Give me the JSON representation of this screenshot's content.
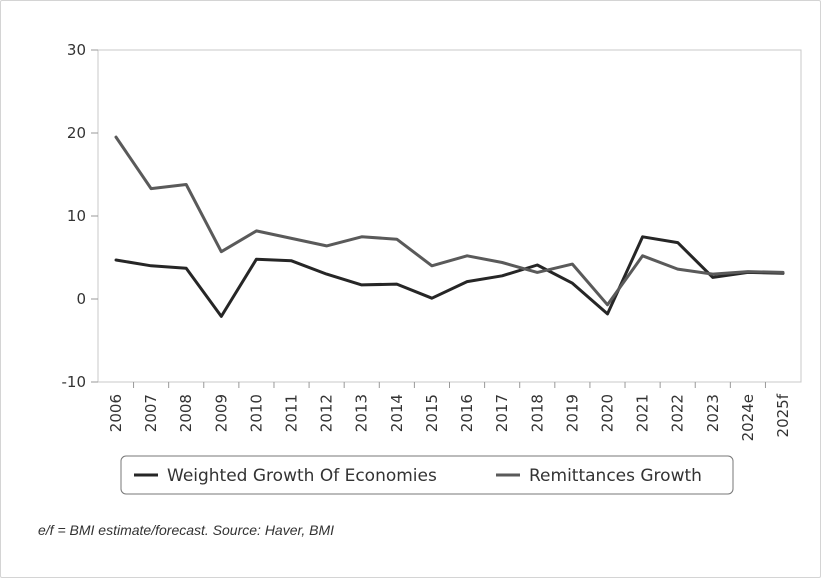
{
  "chart_data": {
    "type": "line",
    "categories": [
      "2006",
      "2007",
      "2008",
      "2009",
      "2010",
      "2011",
      "2012",
      "2013",
      "2014",
      "2015",
      "2016",
      "2017",
      "2018",
      "2019",
      "2020",
      "2021",
      "2022",
      "2023",
      "2024e",
      "2025f"
    ],
    "series": [
      {
        "name": "Weighted Growth Of Economies",
        "color": "#262626",
        "values": [
          4.7,
          4.0,
          3.7,
          -2.1,
          4.8,
          4.6,
          3.0,
          1.7,
          1.8,
          0.1,
          2.1,
          2.8,
          4.1,
          1.9,
          -1.8,
          7.5,
          6.8,
          2.6,
          3.2,
          3.1
        ]
      },
      {
        "name": "Remittances Growth",
        "color": "#5a5a5a",
        "values": [
          19.5,
          13.3,
          13.8,
          5.7,
          8.2,
          7.3,
          6.4,
          7.5,
          7.2,
          4.0,
          5.2,
          4.4,
          3.2,
          4.2,
          -0.7,
          5.2,
          3.6,
          3.0,
          3.3,
          3.2
        ]
      }
    ],
    "ylim": [
      -10,
      30
    ],
    "yticks": [
      30,
      20,
      10,
      0,
      -10
    ],
    "xlabel": "",
    "ylabel": "",
    "grid": false,
    "legend_position": "bottom"
  },
  "footnote": "e/f = BMI estimate/forecast. Source: Haver, BMI"
}
